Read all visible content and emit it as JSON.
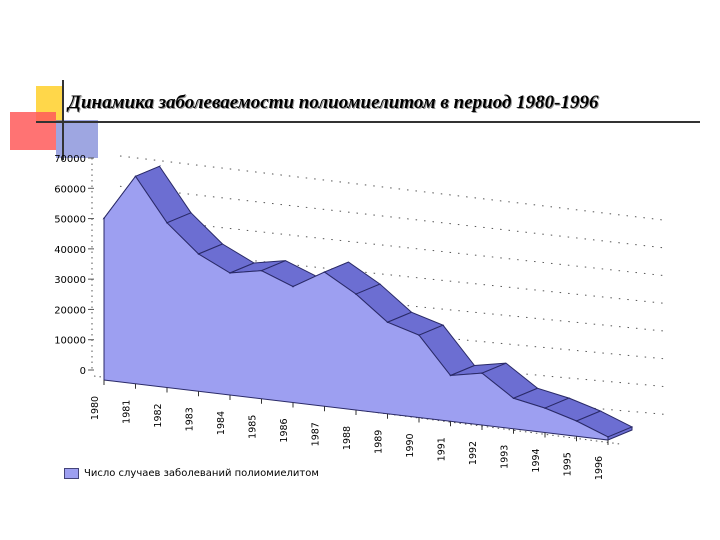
{
  "slide": {
    "title": "Динамика заболеваемости полиомиелитом в период 1980-1996"
  },
  "colors": {
    "front": "#9d9ff1",
    "top": "#6c6ed2",
    "edge": "#2a2a68",
    "deco_yellow": "#ffd74a",
    "deco_red": "#ff5a5a",
    "deco_blue": "#4f5cc8"
  },
  "chart_data": {
    "type": "area",
    "title": "",
    "xlabel": "",
    "ylabel": "",
    "ylim": [
      0,
      70000
    ],
    "yticks": [
      "0",
      "10000",
      "20000",
      "30000",
      "40000",
      "50000",
      "60000",
      "70000"
    ],
    "categories": [
      "1980",
      "1981",
      "1982",
      "1983",
      "1984",
      "1985",
      "1986",
      "1987",
      "1988",
      "1989",
      "1990",
      "1991",
      "1992",
      "1993",
      "1994",
      "1995",
      "1996"
    ],
    "series": [
      {
        "name": "Число случаев заболеваний полиомиелитом",
        "values": [
          53000,
          68000,
          54000,
          45000,
          40000,
          42000,
          38000,
          44000,
          38000,
          30000,
          27000,
          15000,
          17000,
          10000,
          8000,
          5000,
          1000
        ]
      }
    ],
    "grid": true,
    "legend": "bottom-left"
  }
}
